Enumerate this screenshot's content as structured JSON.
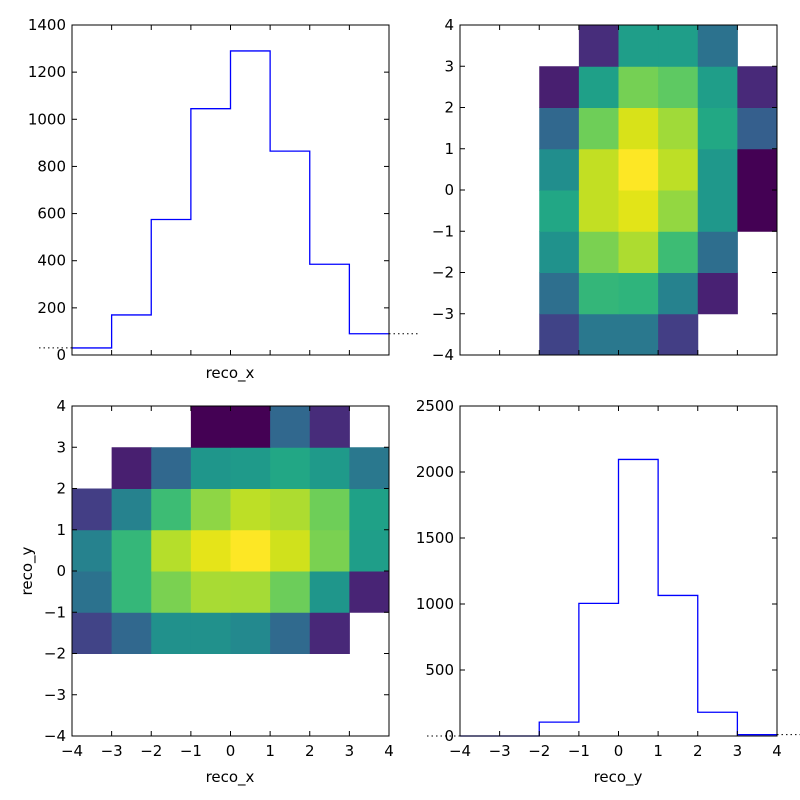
{
  "chart_data": [
    {
      "panel": "top-left",
      "type": "histogram",
      "xlabel": "reco_x",
      "ylabel": "",
      "bin_edges": [
        -4,
        -3,
        -2,
        -1,
        0,
        1,
        2,
        3,
        4
      ],
      "values": [
        30,
        170,
        575,
        1045,
        1290,
        865,
        385,
        90
      ],
      "ylim": [
        0,
        1400
      ],
      "yticks": [
        "0",
        "200",
        "400",
        "600",
        "800",
        "1000",
        "1200",
        "1400"
      ],
      "color": "#0000ff"
    },
    {
      "panel": "top-right",
      "type": "heatmap",
      "x_edges": [
        -4,
        -3,
        -2,
        -1,
        0,
        1,
        2,
        3,
        4
      ],
      "y_edges": [
        -4,
        -3,
        -2,
        -1,
        0,
        1,
        2,
        3,
        4
      ],
      "yticks": [
        "−4",
        "−3",
        "−2",
        "−1",
        "0",
        "1",
        "2",
        "3",
        "4"
      ],
      "colors": [
        [
          "",
          "",
          "#404387",
          "#2a788e",
          "#2a788e",
          "#433e85",
          "",
          ""
        ],
        [
          "",
          "",
          "#2e6f8e",
          "#34b679",
          "#2fb47c",
          "#26828e",
          "#482173",
          ""
        ],
        [
          "",
          "",
          "#20928c",
          "#7ad151",
          "#addc30",
          "#3dbc74",
          "#2e6e8e",
          ""
        ],
        [
          "",
          "",
          "#22a785",
          "#c2df23",
          "#e2e418",
          "#93d741",
          "#1f988b",
          "#440154"
        ],
        [
          "",
          "",
          "#218e8d",
          "#c2df23",
          "#fde725",
          "#bddf26",
          "#1f988b",
          "#440154"
        ],
        [
          "",
          "",
          "#31688e",
          "#6ece58",
          "#d8e219",
          "#a0da39",
          "#22a884",
          "#355f8d"
        ],
        [
          "",
          "",
          "#481f70",
          "#1fa088",
          "#75d054",
          "#5ec962",
          "#1f9e89",
          "#482979"
        ],
        [
          "",
          "",
          "",
          "#472d7b",
          "#1f9e89",
          "#1f9e89",
          "#2c728e",
          ""
        ]
      ]
    },
    {
      "panel": "bottom-left",
      "type": "heatmap",
      "xlabel": "reco_x",
      "ylabel": "reco_y",
      "x_edges": [
        -4,
        -3,
        -2,
        -1,
        0,
        1,
        2,
        3,
        4
      ],
      "y_edges": [
        -4,
        -3,
        -2,
        -1,
        0,
        1,
        2,
        3,
        4
      ],
      "xticks": [
        "−4",
        "−3",
        "−2",
        "−1",
        "0",
        "1",
        "2",
        "3",
        "4"
      ],
      "yticks": [
        "−4",
        "−3",
        "−2",
        "−1",
        "0",
        "1",
        "2",
        "3",
        "4"
      ],
      "colors": [
        [
          "",
          "",
          "",
          "",
          "",
          "",
          "",
          ""
        ],
        [
          "",
          "",
          "",
          "",
          "",
          "",
          "",
          ""
        ],
        [
          "#414487",
          "#31688e",
          "#21918c",
          "#21918c",
          "#23898e",
          "#306a8e",
          "#482878",
          ""
        ],
        [
          "#2c728e",
          "#35b779",
          "#7ad151",
          "#a8db34",
          "#a5db36",
          "#6ccd5a",
          "#1f968b",
          "#482475"
        ],
        [
          "#26828e",
          "#35b779",
          "#b5de2b",
          "#e5e419",
          "#fde725",
          "#d0e11c",
          "#7ad151",
          "#1f9e89"
        ],
        [
          "#433e85",
          "#26828e",
          "#3dbc74",
          "#8ed645",
          "#bddf26",
          "#addc30",
          "#6ece58",
          "#1fa187"
        ],
        [
          "",
          "#481f70",
          "#31688e",
          "#1f968b",
          "#1f9a8a",
          "#22a785",
          "#1f9a8a",
          "#2a788e"
        ],
        [
          "",
          "",
          "",
          "#440154",
          "#440154",
          "#31688e",
          "#472c7a",
          ""
        ]
      ]
    },
    {
      "panel": "bottom-right",
      "type": "histogram",
      "xlabel": "reco_y",
      "ylabel": "",
      "bin_edges": [
        -4,
        -3,
        -2,
        -1,
        0,
        1,
        2,
        3,
        4
      ],
      "values": [
        0,
        0,
        105,
        1005,
        2095,
        1065,
        180,
        10
      ],
      "ylim": [
        0,
        2500
      ],
      "xticks": [
        "−4",
        "−3",
        "−2",
        "−1",
        "0",
        "1",
        "2",
        "3",
        "4"
      ],
      "yticks": [
        "0",
        "500",
        "1000",
        "1500",
        "2000",
        "2500"
      ],
      "color": "#0000ff"
    }
  ]
}
